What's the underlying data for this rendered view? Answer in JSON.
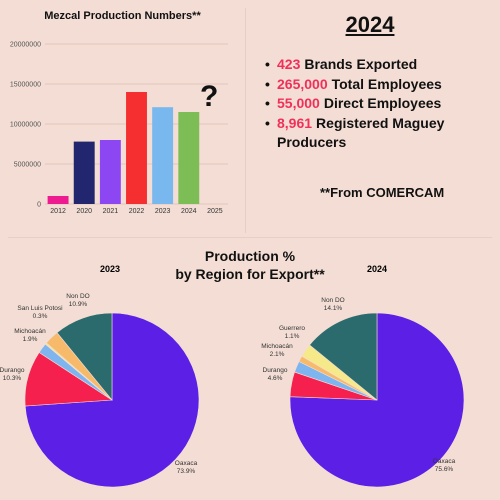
{
  "bar_chart": {
    "title": "Mezcal Production Numbers**",
    "unknown_marker": "?"
  },
  "stats": {
    "year": "2024",
    "items": [
      {
        "number": "423",
        "label": "Brands Exported"
      },
      {
        "number": "265,000",
        "label": "Total Employees"
      },
      {
        "number": "55,000",
        "label": "Direct Employees"
      },
      {
        "number": "8,961",
        "label": "Registered Maguey Producers"
      }
    ],
    "source": "**From COMERCAM"
  },
  "pies": {
    "heading_line1": "Production %",
    "heading_line2": "by Region for Export**"
  },
  "colors": {
    "Oaxaca": "#5b1fe6",
    "Durango": "#f5204d",
    "Michoacán": "#7fb5ef",
    "San Luis Potosi": "#f5e98a",
    "Guerrero": "#f7b96a",
    "Non DO": "#2b6b6d"
  },
  "chart_data": [
    {
      "type": "bar",
      "title": "Mezcal Production Numbers**",
      "categories": [
        "2012",
        "2020",
        "2021",
        "2022",
        "2023",
        "2024",
        "2025"
      ],
      "values": [
        1000000,
        7800000,
        8000000,
        14000000,
        12100000,
        11500000,
        null
      ],
      "bar_colors": [
        "#ee1a8f",
        "#22266e",
        "#8c47f2",
        "#f52f30",
        "#78b8ee",
        "#7cbd56",
        null
      ],
      "ylim": [
        0,
        20000000
      ],
      "yticks": [
        0,
        5000000,
        10000000,
        15000000,
        20000000
      ],
      "xlabel": "",
      "ylabel": "",
      "grid": true
    },
    {
      "type": "pie",
      "title": "2023",
      "slices": [
        {
          "label": "Oaxaca",
          "value": 73.9,
          "pct": "73.9%"
        },
        {
          "label": "Durango",
          "value": 10.3,
          "pct": "10.3%"
        },
        {
          "label": "Michoacán",
          "value": 1.9,
          "pct": "1.9%"
        },
        {
          "label": "San Luis Potosi",
          "value": 0.3,
          "pct": "0.3%"
        },
        {
          "label": "",
          "value": 2.7,
          "pct": ""
        },
        {
          "label": "Non DO",
          "value": 10.9,
          "pct": "10.9%"
        }
      ]
    },
    {
      "type": "pie",
      "title": "2024",
      "slices": [
        {
          "label": "Oaxaca",
          "value": 75.6,
          "pct": "75.6%"
        },
        {
          "label": "Durango",
          "value": 4.6,
          "pct": "4.6%"
        },
        {
          "label": "Michoacán",
          "value": 2.1,
          "pct": "2.1%"
        },
        {
          "label": "Guerrero",
          "value": 1.1,
          "pct": "1.1%"
        },
        {
          "label": "",
          "value": 2.5,
          "pct": ""
        },
        {
          "label": "Non DO",
          "value": 14.1,
          "pct": "14.1%"
        }
      ]
    }
  ]
}
